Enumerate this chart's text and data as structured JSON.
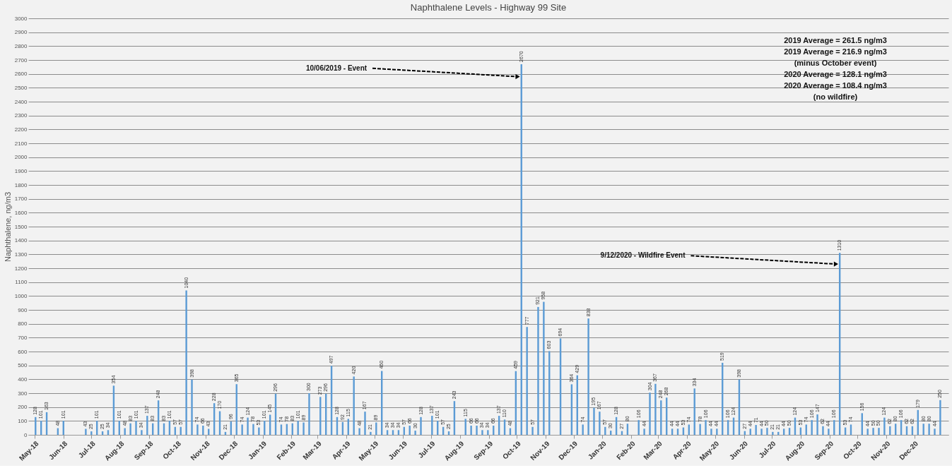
{
  "chart_data": {
    "type": "bar",
    "title": "Naphthalene Levels - Highway 99 Site",
    "ylabel": "Naphthalene, ng/m3",
    "x": [
      "2018-05-02",
      "2018-05-08",
      "2018-05-14",
      "2018-05-26",
      "2018-06-01",
      "2018-06-25",
      "2018-07-01",
      "2018-07-07",
      "2018-07-13",
      "2018-07-19",
      "2018-07-25",
      "2018-07-31",
      "2018-08-06",
      "2018-08-12",
      "2018-08-18",
      "2018-08-24",
      "2018-08-30",
      "2018-09-05",
      "2018-09-11",
      "2018-09-17",
      "2018-09-23",
      "2018-09-29",
      "2018-10-05",
      "2018-10-11",
      "2018-10-17",
      "2018-10-23",
      "2018-10-29",
      "2018-11-04",
      "2018-11-10",
      "2018-11-16",
      "2018-11-22",
      "2018-11-28",
      "2018-12-04",
      "2018-12-10",
      "2018-12-16",
      "2018-12-22",
      "2018-12-28",
      "2019-01-03",
      "2019-01-09",
      "2019-01-15",
      "2019-01-21",
      "2019-01-27",
      "2019-02-02",
      "2019-02-08",
      "2019-02-14",
      "2019-02-20",
      "2019-03-04",
      "2019-03-10",
      "2019-03-16",
      "2019-03-22",
      "2019-03-28",
      "2019-04-03",
      "2019-04-09",
      "2019-04-15",
      "2019-04-21",
      "2019-04-27",
      "2019-05-03",
      "2019-05-09",
      "2019-05-15",
      "2019-05-21",
      "2019-05-27",
      "2019-06-02",
      "2019-06-08",
      "2019-06-14",
      "2019-06-20",
      "2019-07-02",
      "2019-07-08",
      "2019-07-14",
      "2019-07-20",
      "2019-07-26",
      "2019-08-07",
      "2019-08-13",
      "2019-08-19",
      "2019-08-25",
      "2019-08-31",
      "2019-09-06",
      "2019-09-12",
      "2019-09-18",
      "2019-09-24",
      "2019-09-30",
      "2019-10-06",
      "2019-10-12",
      "2019-10-18",
      "2019-10-24",
      "2019-10-30",
      "2019-11-05",
      "2019-11-17",
      "2019-11-29",
      "2019-12-05",
      "2019-12-11",
      "2019-12-17",
      "2019-12-23",
      "2019-12-29",
      "2020-01-04",
      "2020-01-10",
      "2020-01-16",
      "2020-01-22",
      "2020-01-28",
      "2020-02-09",
      "2020-02-15",
      "2020-02-21",
      "2020-02-27",
      "2020-03-04",
      "2020-03-10",
      "2020-03-16",
      "2020-03-22",
      "2020-03-28",
      "2020-04-03",
      "2020-04-09",
      "2020-04-15",
      "2020-04-21",
      "2020-04-27",
      "2020-05-03",
      "2020-05-09",
      "2020-05-15",
      "2020-05-21",
      "2020-05-27",
      "2020-06-02",
      "2020-06-08",
      "2020-06-14",
      "2020-06-20",
      "2020-06-26",
      "2020-07-02",
      "2020-07-08",
      "2020-07-14",
      "2020-07-20",
      "2020-07-26",
      "2020-08-01",
      "2020-08-07",
      "2020-08-13",
      "2020-08-19",
      "2020-08-25",
      "2020-08-31",
      "2020-09-06",
      "2020-09-12",
      "2020-09-18",
      "2020-09-24",
      "2020-10-06",
      "2020-10-12",
      "2020-10-18",
      "2020-10-24",
      "2020-10-30",
      "2020-11-05",
      "2020-11-11",
      "2020-11-17",
      "2020-11-23",
      "2020-11-29",
      "2020-12-05",
      "2020-12-11",
      "2020-12-17",
      "2020-12-23",
      "2020-12-29"
    ],
    "values": [
      128,
      101,
      163,
      48,
      101,
      43,
      25,
      101,
      25,
      34,
      354,
      101,
      48,
      83,
      101,
      34,
      137,
      83,
      248,
      83,
      101,
      57,
      57,
      1040,
      398,
      74,
      66,
      43,
      228,
      170,
      21,
      96,
      365,
      74,
      124,
      78,
      53,
      101,
      145,
      296,
      74,
      78,
      83,
      101,
      89,
      300,
      273,
      296,
      497,
      128,
      92,
      115,
      420,
      48,
      167,
      21,
      89,
      460,
      34,
      34,
      34,
      57,
      66,
      30,
      128,
      137,
      101,
      57,
      25,
      243,
      115,
      66,
      66,
      34,
      34,
      66,
      137,
      110,
      48,
      459,
      2670,
      777,
      57,
      921,
      958,
      603,
      694,
      364,
      429,
      74,
      838,
      195,
      167,
      57,
      30,
      128,
      27,
      80,
      106,
      44,
      304,
      367,
      248,
      268,
      44,
      44,
      53,
      74,
      334,
      78,
      106,
      44,
      44,
      519,
      106,
      124,
      398,
      27,
      44,
      71,
      44,
      50,
      21,
      21,
      44,
      50,
      124,
      53,
      74,
      106,
      147,
      62,
      44,
      106,
      1310,
      53,
      74,
      156,
      44,
      50,
      50,
      124,
      62,
      80,
      106,
      62,
      62,
      179,
      80,
      80,
      44,
      250
    ],
    "color": "#5b9bd5",
    "data_labels": true,
    "xlim": [
      "2018-04-28",
      "2021-01-03"
    ],
    "xticks": [
      {
        "value": "2018-05",
        "label": "May-18"
      },
      {
        "value": "2018-06",
        "label": "Jun-18"
      },
      {
        "value": "2018-07",
        "label": "Jul-18"
      },
      {
        "value": "2018-08",
        "label": "Aug-18"
      },
      {
        "value": "2018-09",
        "label": "Sep-18"
      },
      {
        "value": "2018-10",
        "label": "Oct-18"
      },
      {
        "value": "2018-11",
        "label": "Nov-18"
      },
      {
        "value": "2018-12",
        "label": "Dec-18"
      },
      {
        "value": "2019-01",
        "label": "Jan-19"
      },
      {
        "value": "2019-02",
        "label": "Feb-19"
      },
      {
        "value": "2019-03",
        "label": "Mar-19"
      },
      {
        "value": "2019-04",
        "label": "Apr-19"
      },
      {
        "value": "2019-05",
        "label": "May-19"
      },
      {
        "value": "2019-06",
        "label": "Jun-19"
      },
      {
        "value": "2019-07",
        "label": "Jul-19"
      },
      {
        "value": "2019-08",
        "label": "Aug-19"
      },
      {
        "value": "2019-09",
        "label": "Sep-19"
      },
      {
        "value": "2019-10",
        "label": "Oct-19"
      },
      {
        "value": "2019-11",
        "label": "Nov-19"
      },
      {
        "value": "2019-12",
        "label": "Dec-19"
      },
      {
        "value": "2020-01",
        "label": "Jan-20"
      },
      {
        "value": "2020-02",
        "label": "Feb-20"
      },
      {
        "value": "2020-03",
        "label": "Mar-20"
      },
      {
        "value": "2020-04",
        "label": "Apr-20"
      },
      {
        "value": "2020-05",
        "label": "May-20"
      },
      {
        "value": "2020-06",
        "label": "Jun-20"
      },
      {
        "value": "2020-07",
        "label": "Jul-20"
      },
      {
        "value": "2020-08",
        "label": "Aug-20"
      },
      {
        "value": "2020-09",
        "label": "Sep-20"
      },
      {
        "value": "2020-10",
        "label": "Oct-20"
      },
      {
        "value": "2020-11",
        "label": "Nov-20"
      },
      {
        "value": "2020-12",
        "label": "Dec-20"
      }
    ],
    "ylim": [
      0,
      3000
    ],
    "yticks": [
      0,
      100,
      200,
      300,
      400,
      500,
      600,
      700,
      800,
      900,
      1000,
      1100,
      1200,
      1300,
      1400,
      1500,
      1600,
      1700,
      1800,
      1900,
      2000,
      2100,
      2200,
      2300,
      2400,
      2500,
      2600,
      2700,
      2800,
      2900,
      3000
    ],
    "grid": "y",
    "annotations": [
      {
        "text": "10/06/2019 - Event",
        "x": "2019-10-06",
        "y": 2580
      },
      {
        "text": "9/12/2020 - Wildfire Event",
        "x": "2020-09-12",
        "y": 1230
      },
      "2019 Average = 261.5 ng/m3",
      "2019 Average = 216.9 ng/m3",
      "(minus October event)",
      "2020 Average = 128.1 ng/m3",
      "2020 Average = 108.4 ng/m3",
      "(no wildfire)"
    ]
  }
}
